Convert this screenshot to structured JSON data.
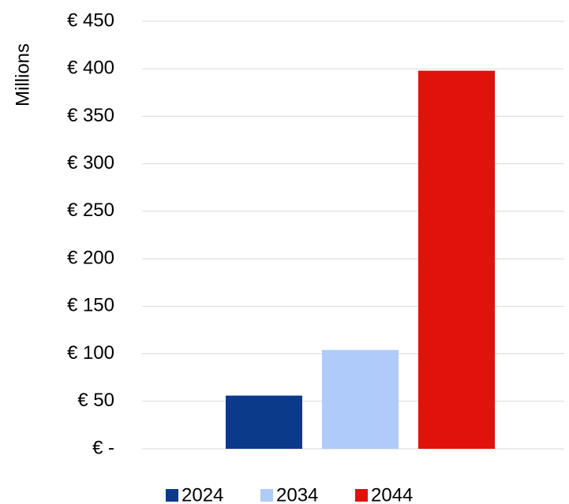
{
  "chart_data": {
    "type": "bar",
    "y_axis_label": "Millions",
    "categories": [
      null
    ],
    "series": [
      {
        "name": "2024",
        "color": "#0c3a8a",
        "values": [
          56
        ]
      },
      {
        "name": "2034",
        "color": "#aecbfa",
        "values": [
          104
        ]
      },
      {
        "name": "2044",
        "color": "#e0120b",
        "values": [
          398
        ]
      }
    ],
    "ylim": [
      0,
      450
    ],
    "yticks": [
      {
        "value": 0,
        "label": "€ -"
      },
      {
        "value": 50,
        "label": "€ 50"
      },
      {
        "value": 100,
        "label": "€ 100"
      },
      {
        "value": 150,
        "label": "€ 150"
      },
      {
        "value": 200,
        "label": "€ 200"
      },
      {
        "value": 250,
        "label": "€ 250"
      },
      {
        "value": 300,
        "label": "€ 300"
      },
      {
        "value": 350,
        "label": "€ 350"
      },
      {
        "value": 400,
        "label": "€ 400"
      },
      {
        "value": 450,
        "label": "€ 450"
      }
    ],
    "grid": true,
    "legend": "bottom"
  }
}
